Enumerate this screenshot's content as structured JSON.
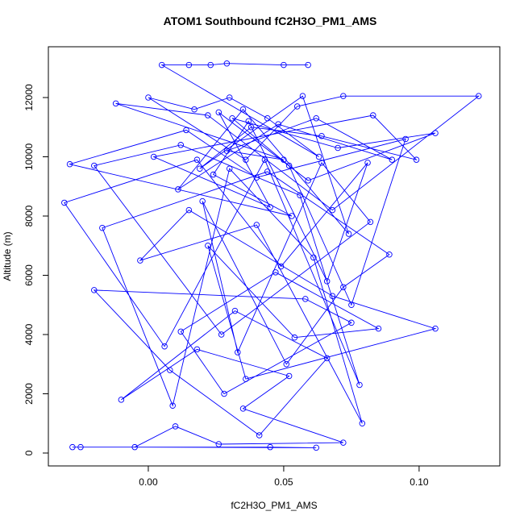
{
  "chart_data": {
    "type": "line",
    "title": "ATOM1 Southbound fC2H3O_PM1_AMS",
    "xlabel": "fC2H3O_PM1_AMS",
    "ylabel": "Altitude (m)",
    "xlim": [
      -0.0369,
      0.1298
    ],
    "ylim": [
      -435,
      13714
    ],
    "xticks": [
      {
        "value": 0,
        "label": "0.00"
      },
      0.05,
      {
        "value": 0.1,
        "label": "0.10"
      }
    ],
    "yticks": [
      0,
      2000,
      4000,
      6000,
      8000,
      10000,
      12000
    ],
    "x": [
      -0.028,
      -0.025,
      0.045,
      0.062,
      -0.005,
      0.01,
      0.026,
      0.072,
      0.035,
      0.052,
      0.018,
      -0.01,
      0.032,
      0.066,
      0.041,
      0.008,
      -0.02,
      0.058,
      0.075,
      0.028,
      0.012,
      0.047,
      0.085,
      0.054,
      0.022,
      0.036,
      0.106,
      0.068,
      0.015,
      -0.003,
      0.04,
      0.079,
      0.061,
      0.03,
      0.009,
      -0.017,
      0.044,
      0.089,
      0.072,
      0.051,
      0.02,
      0.033,
      0.064,
      0.082,
      0.027,
      -0.02,
      0.012,
      0.056,
      0.078,
      0.043,
      0.006,
      -0.031,
      0.018,
      0.049,
      0.081,
      0.066,
      0.037,
      0.024,
      0.053,
      -0.029,
      0.014,
      0.04,
      0.095,
      0.075,
      0.052,
      0.031,
      0.07,
      0.106,
      0.059,
      0.026,
      0.045,
      0.002,
      0.083,
      0.099,
      0.064,
      0.038,
      0.019,
      0.057,
      0.074,
      0.035,
      0.011,
      0.048,
      0.09,
      0.062,
      0.029,
      0.05,
      -0.012,
      0.022,
      0.068,
      0.122,
      0.072,
      0.055,
      0.036,
      0.0,
      0.017,
      0.03,
      0.044,
      0.063,
      0.005,
      0.015,
      0.023,
      0.029,
      0.05,
      0.059
    ],
    "series": [
      {
        "color": "#0000ff",
        "values": [
          200,
          200,
          200,
          180,
          200,
          900,
          300,
          350,
          1500,
          2600,
          3500,
          1800,
          4800,
          3200,
          600,
          2800,
          5500,
          5200,
          4400,
          2000,
          4100,
          6100,
          4200,
          3900,
          7000,
          2500,
          4200,
          5300,
          8200,
          6500,
          7700,
          1000,
          6600,
          9600,
          1600,
          7600,
          9500,
          6700,
          5600,
          3000,
          8500,
          3400,
          9800,
          7800,
          4000,
          9700,
          10400,
          8700,
          2300,
          9900,
          3600,
          8450,
          9900,
          6300,
          9800,
          5800,
          11200,
          9400,
          8000,
          9750,
          10900,
          9300,
          10600,
          5000,
          9700,
          11300,
          10300,
          10800,
          9200,
          11500,
          8300,
          10000,
          11400,
          9900,
          10700,
          11000,
          9600,
          12050,
          7400,
          11600,
          8900,
          11100,
          9900,
          11300,
          10200,
          9900,
          11800,
          11400,
          8200,
          12050,
          12050,
          11700,
          9900,
          12000,
          11600,
          12000,
          11300,
          10000,
          13100,
          13100,
          13100,
          13150,
          13100,
          13100
        ]
      }
    ]
  }
}
